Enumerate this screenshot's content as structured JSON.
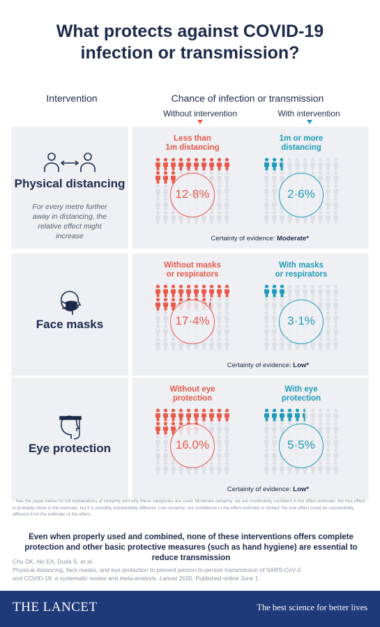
{
  "title_lines": [
    "What protects against COVID-19",
    "infection or transmission?"
  ],
  "header": {
    "intervention": "Intervention",
    "chance": "Chance of infection or transmission",
    "without": "Without intervention",
    "with": "With intervention"
  },
  "colors": {
    "red": "#e8594a",
    "blue": "#1e9bb8",
    "grey_person": "#dde1e7",
    "navy": "#1b2a4a",
    "footer_bg": "#1e3a78"
  },
  "interventions": [
    {
      "name": "Physical distancing",
      "icon": "two-people-distance-icon",
      "note": "For every metre further away in distancing, the relative effect might increase",
      "without_label": [
        "Less than",
        "1m distancing"
      ],
      "with_label": [
        "1m or more",
        "distancing"
      ],
      "without_pct": "12·8%",
      "with_pct": "2·6%",
      "without_value": 12.8,
      "with_value": 2.6,
      "certainty_label": "Certainty of evidence:",
      "certainty": "Moderate*"
    },
    {
      "name": "Face masks",
      "icon": "face-mask-icon",
      "note": "",
      "without_label": [
        "Without masks",
        "or respirators"
      ],
      "with_label": [
        "With masks",
        "or respirators"
      ],
      "without_pct": "17·4%",
      "with_pct": "3·1%",
      "without_value": 17.4,
      "with_value": 3.1,
      "certainty_label": "Certainty of evidence:",
      "certainty": "Low*"
    },
    {
      "name": "Eye protection",
      "icon": "face-shield-icon",
      "note": "",
      "without_label": [
        "Without eye",
        "protection"
      ],
      "with_label": [
        "With eye",
        "protection"
      ],
      "without_pct": "16.0%",
      "with_pct": "5·5%",
      "without_value": 16.0,
      "with_value": 5.5,
      "certainty_label": "Certainty of evidence:",
      "certainty": "Low*"
    }
  ],
  "footnote": "* See the paper below for full explanations of certainty and why these categories are used. Moderate certainty: we are moderately confident in the effect estimate; the true effect is probably close to the estimate, but it is possibly substantially different. Low certainty: our confidence in the effect estimate is limited; the true effect could be substantially different from the estimate of the effect.",
  "summary": "Even when properly used and combined, none of these interventions offers complete protection and other basic protective measures (such as hand hygiene) are essential to reduce transmission",
  "reference": {
    "authors": "Chu DK, Akl EA, Duda S, et al.",
    "line1": "Physical distancing, face masks, and eye protection to prevent person-to-person transmission of SARS-CoV-2",
    "line2a": "and COVID-19: a systematic review and meta-analysis.",
    "journal": "Lancet",
    "line2b": "2020. Published online June 1."
  },
  "footer": {
    "brand": "THE LANCET",
    "tagline": "The best science for better lives"
  }
}
